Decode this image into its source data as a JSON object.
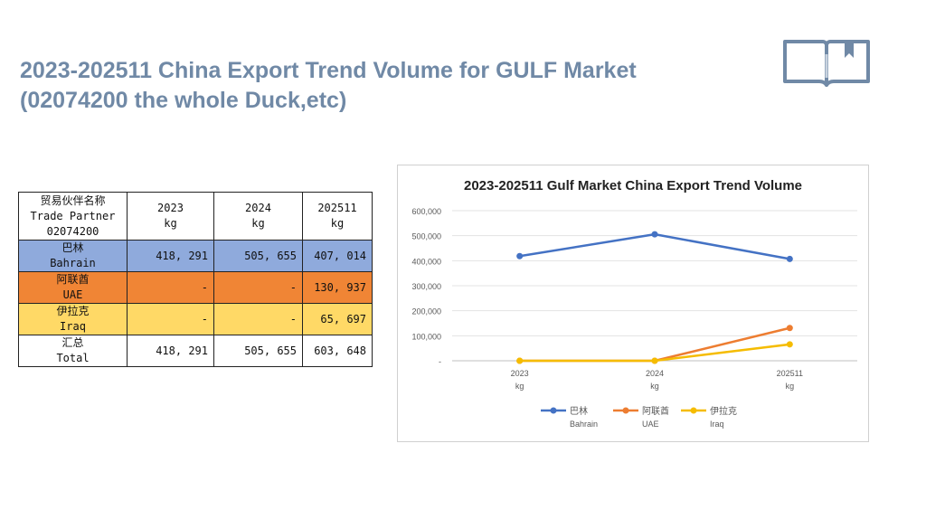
{
  "page": {
    "title_line1": "2023-202511  China Export Trend Volume for GULF Market",
    "title_line2": "(02074200 the whole Duck,etc)",
    "icon": "book-icon"
  },
  "table": {
    "header": {
      "partner": [
        "贸易伙伴名称",
        "Trade Partner",
        "02074200"
      ],
      "years": [
        {
          "year": "2023",
          "unit": "kg"
        },
        {
          "year": "2024",
          "unit": "kg"
        },
        {
          "year": "202511",
          "unit": "kg"
        }
      ]
    },
    "rows": [
      {
        "name_cn": "巴林",
        "name_en": "Bahrain",
        "values": [
          "418, 291",
          "505, 655",
          "407, 014"
        ],
        "color": "#8faadc"
      },
      {
        "name_cn": "阿联酋",
        "name_en": "UAE",
        "values": [
          "-",
          "-",
          "130, 937"
        ],
        "color": "#f08535"
      },
      {
        "name_cn": "伊拉克",
        "name_en": "Iraq",
        "values": [
          "-",
          "-",
          "65, 697"
        ],
        "color": "#ffd966"
      },
      {
        "name_cn": "汇总",
        "name_en": "Total",
        "values": [
          "418, 291",
          "505, 655",
          "603, 648"
        ],
        "color": "#ffffff"
      }
    ]
  },
  "chart_data": {
    "type": "line",
    "title": "2023-202511 Gulf Market China Export Trend Volume",
    "categories": [
      {
        "label": "2023",
        "unit": "kg"
      },
      {
        "label": "2024",
        "unit": "kg"
      },
      {
        "label": "202511",
        "unit": "kg"
      }
    ],
    "y_ticks": [
      "-",
      "100,000",
      "200,000",
      "300,000",
      "400,000",
      "500,000",
      "600,000"
    ],
    "ylim": [
      0,
      600000
    ],
    "grid": true,
    "legend_position": "bottom",
    "series": [
      {
        "name_cn": "巴林",
        "name_en": "Bahrain",
        "color": "#4472c4",
        "values": [
          418291,
          505655,
          407014
        ]
      },
      {
        "name_cn": "阿联酋",
        "name_en": "UAE",
        "color": "#ed7d31",
        "values": [
          0,
          0,
          130937
        ]
      },
      {
        "name_cn": "伊拉克",
        "name_en": "Iraq",
        "color": "#f5bc00",
        "values": [
          0,
          0,
          65697
        ]
      }
    ]
  }
}
